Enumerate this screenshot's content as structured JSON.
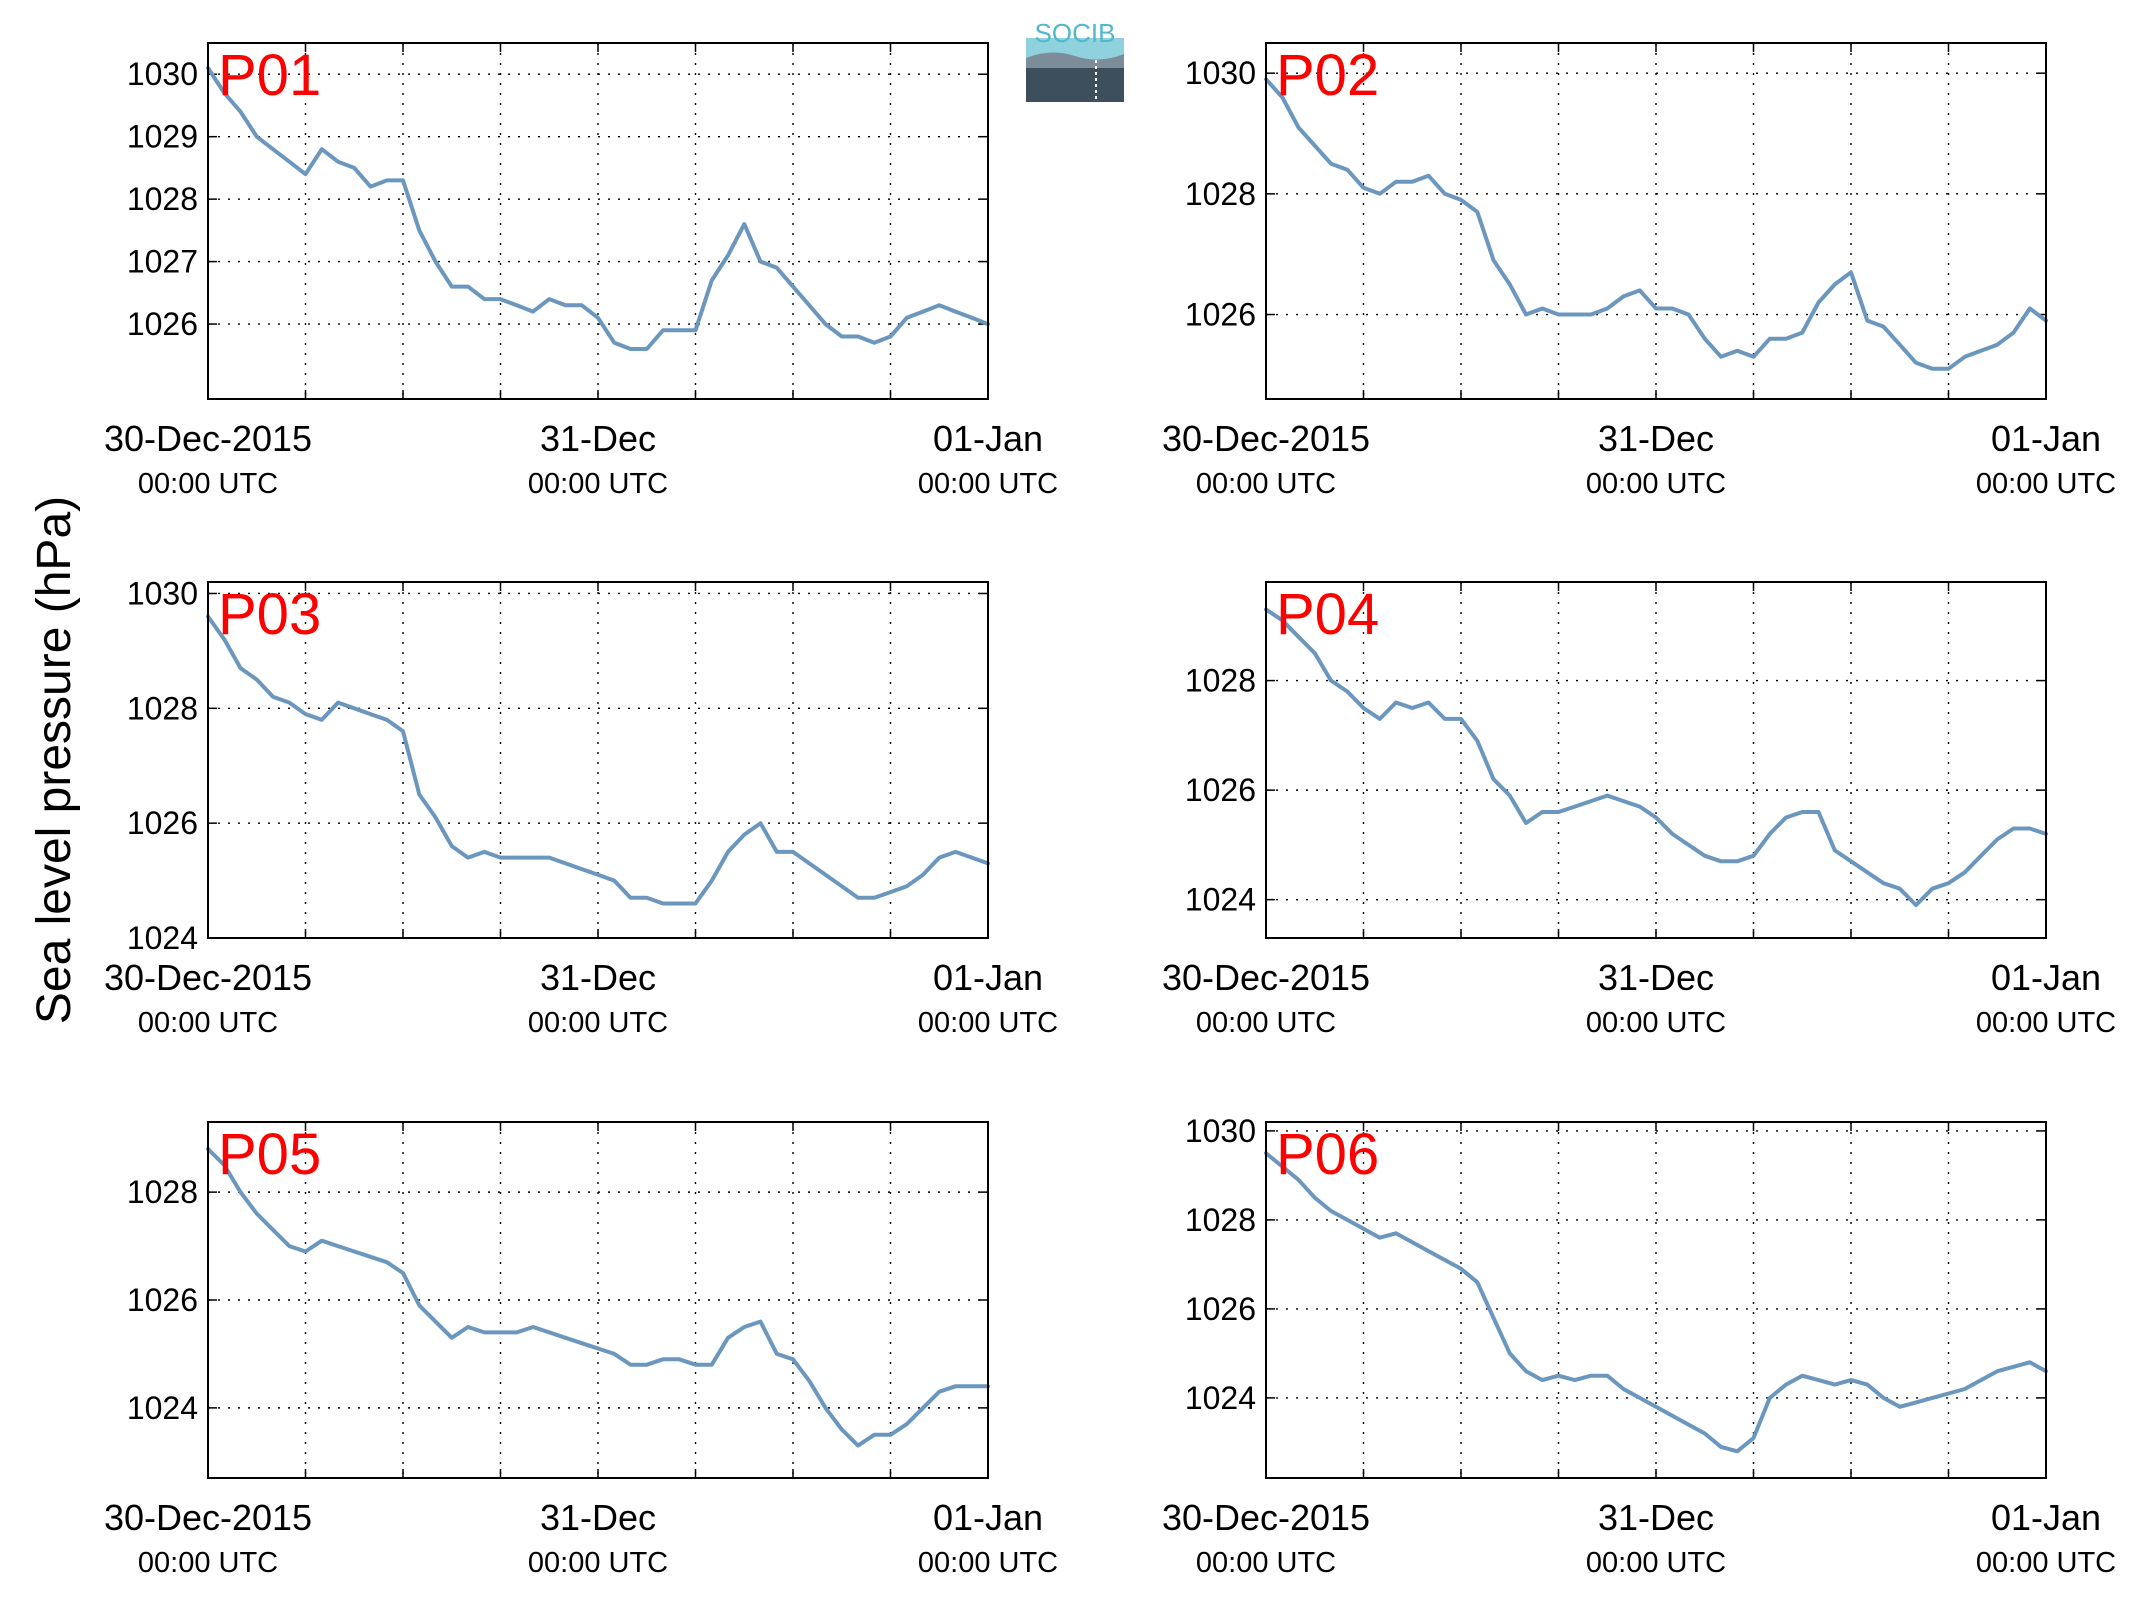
{
  "figure": {
    "ylabel": "Sea level pressure (hPa)",
    "logo_text": "SOCIB",
    "colors": {
      "line": "#6b97be",
      "panel_label": "#ff0000",
      "axis": "#000000",
      "grid": "#000000"
    }
  },
  "chart_data": [
    {
      "type": "line",
      "title": "P01",
      "x_ticks": [
        {
          "t": 0,
          "top": "30-Dec-2015",
          "bottom": "00:00 UTC"
        },
        {
          "t": 24,
          "top": "31-Dec",
          "bottom": "00:00 UTC"
        },
        {
          "t": 48,
          "top": "01-Jan",
          "bottom": "00:00 UTC"
        }
      ],
      "xlim": [
        0,
        48
      ],
      "ylim": [
        1024.8,
        1030.5
      ],
      "y_ticks": [
        1026,
        1027,
        1028,
        1029,
        1030
      ],
      "grid": true,
      "series": [
        {
          "x": [
            0,
            1,
            2,
            3,
            4,
            5,
            6,
            7,
            8,
            9,
            10,
            11,
            12,
            13,
            14,
            15,
            16,
            17,
            18,
            19,
            20,
            21,
            22,
            23,
            24,
            25,
            26,
            27,
            28,
            29,
            30,
            31,
            32,
            33,
            34,
            35,
            36,
            37,
            38,
            39,
            40,
            41,
            42,
            43,
            44,
            45,
            46,
            47,
            48
          ],
          "y": [
            1030.1,
            1029.7,
            1029.4,
            1029.0,
            1028.8,
            1028.6,
            1028.4,
            1028.8,
            1028.6,
            1028.5,
            1028.2,
            1028.3,
            1028.3,
            1027.5,
            1027.0,
            1026.6,
            1026.6,
            1026.4,
            1026.4,
            1026.3,
            1026.2,
            1026.4,
            1026.3,
            1026.3,
            1026.1,
            1025.7,
            1025.6,
            1025.6,
            1025.9,
            1025.9,
            1025.9,
            1026.7,
            1027.1,
            1027.6,
            1027.0,
            1026.9,
            1026.6,
            1026.3,
            1026.0,
            1025.8,
            1025.8,
            1025.7,
            1025.8,
            1026.1,
            1026.2,
            1026.3,
            1026.2,
            1026.1,
            1026.0
          ]
        }
      ]
    },
    {
      "type": "line",
      "title": "P02",
      "x_ticks": [
        {
          "t": 0,
          "top": "30-Dec-2015",
          "bottom": "00:00 UTC"
        },
        {
          "t": 24,
          "top": "31-Dec",
          "bottom": "00:00 UTC"
        },
        {
          "t": 48,
          "top": "01-Jan",
          "bottom": "00:00 UTC"
        }
      ],
      "xlim": [
        0,
        48
      ],
      "ylim": [
        1024.6,
        1030.5
      ],
      "y_ticks": [
        1026,
        1028,
        1030
      ],
      "grid": true,
      "series": [
        {
          "x": [
            0,
            1,
            2,
            3,
            4,
            5,
            6,
            7,
            8,
            9,
            10,
            11,
            12,
            13,
            14,
            15,
            16,
            17,
            18,
            19,
            20,
            21,
            22,
            23,
            24,
            25,
            26,
            27,
            28,
            29,
            30,
            31,
            32,
            33,
            34,
            35,
            36,
            37,
            38,
            39,
            40,
            41,
            42,
            43,
            44,
            45,
            46,
            47,
            48
          ],
          "y": [
            1029.9,
            1029.6,
            1029.1,
            1028.8,
            1028.5,
            1028.4,
            1028.1,
            1028.0,
            1028.2,
            1028.2,
            1028.3,
            1028.0,
            1027.9,
            1027.7,
            1026.9,
            1026.5,
            1026.0,
            1026.1,
            1026.0,
            1026.0,
            1026.0,
            1026.1,
            1026.3,
            1026.4,
            1026.1,
            1026.1,
            1026.0,
            1025.6,
            1025.3,
            1025.4,
            1025.3,
            1025.6,
            1025.6,
            1025.7,
            1026.2,
            1026.5,
            1026.7,
            1025.9,
            1025.8,
            1025.5,
            1025.2,
            1025.1,
            1025.1,
            1025.3,
            1025.4,
            1025.5,
            1025.7,
            1026.1,
            1025.9
          ]
        }
      ]
    },
    {
      "type": "line",
      "title": "P03",
      "x_ticks": [
        {
          "t": 0,
          "top": "30-Dec-2015",
          "bottom": "00:00 UTC"
        },
        {
          "t": 24,
          "top": "31-Dec",
          "bottom": "00:00 UTC"
        },
        {
          "t": 48,
          "top": "01-Jan",
          "bottom": "00:00 UTC"
        }
      ],
      "xlim": [
        0,
        48
      ],
      "ylim": [
        1024.0,
        1030.2
      ],
      "y_ticks": [
        1024,
        1026,
        1028,
        1030
      ],
      "grid": true,
      "series": [
        {
          "x": [
            0,
            1,
            2,
            3,
            4,
            5,
            6,
            7,
            8,
            9,
            10,
            11,
            12,
            13,
            14,
            15,
            16,
            17,
            18,
            19,
            20,
            21,
            22,
            23,
            24,
            25,
            26,
            27,
            28,
            29,
            30,
            31,
            32,
            33,
            34,
            35,
            36,
            37,
            38,
            39,
            40,
            41,
            42,
            43,
            44,
            45,
            46,
            47,
            48
          ],
          "y": [
            1029.6,
            1029.2,
            1028.7,
            1028.5,
            1028.2,
            1028.1,
            1027.9,
            1027.8,
            1028.1,
            1028.0,
            1027.9,
            1027.8,
            1027.6,
            1026.5,
            1026.1,
            1025.6,
            1025.4,
            1025.5,
            1025.4,
            1025.4,
            1025.4,
            1025.4,
            1025.3,
            1025.2,
            1025.1,
            1025.0,
            1024.7,
            1024.7,
            1024.6,
            1024.6,
            1024.6,
            1025.0,
            1025.5,
            1025.8,
            1026.0,
            1025.5,
            1025.5,
            1025.3,
            1025.1,
            1024.9,
            1024.7,
            1024.7,
            1024.8,
            1024.9,
            1025.1,
            1025.4,
            1025.5,
            1025.4,
            1025.3
          ]
        }
      ]
    },
    {
      "type": "line",
      "title": "P04",
      "x_ticks": [
        {
          "t": 0,
          "top": "30-Dec-2015",
          "bottom": "00:00 UTC"
        },
        {
          "t": 24,
          "top": "31-Dec",
          "bottom": "00:00 UTC"
        },
        {
          "t": 48,
          "top": "01-Jan",
          "bottom": "00:00 UTC"
        }
      ],
      "xlim": [
        0,
        48
      ],
      "ylim": [
        1023.3,
        1029.8
      ],
      "y_ticks": [
        1024,
        1026,
        1028
      ],
      "grid": true,
      "series": [
        {
          "x": [
            0,
            1,
            2,
            3,
            4,
            5,
            6,
            7,
            8,
            9,
            10,
            11,
            12,
            13,
            14,
            15,
            16,
            17,
            18,
            19,
            20,
            21,
            22,
            23,
            24,
            25,
            26,
            27,
            28,
            29,
            30,
            31,
            32,
            33,
            34,
            35,
            36,
            37,
            38,
            39,
            40,
            41,
            42,
            43,
            44,
            45,
            46,
            47,
            48
          ],
          "y": [
            1029.3,
            1029.1,
            1028.8,
            1028.5,
            1028.0,
            1027.8,
            1027.5,
            1027.3,
            1027.6,
            1027.5,
            1027.6,
            1027.3,
            1027.3,
            1026.9,
            1026.2,
            1025.9,
            1025.4,
            1025.6,
            1025.6,
            1025.7,
            1025.8,
            1025.9,
            1025.8,
            1025.7,
            1025.5,
            1025.2,
            1025.0,
            1024.8,
            1024.7,
            1024.7,
            1024.8,
            1025.2,
            1025.5,
            1025.6,
            1025.6,
            1024.9,
            1024.7,
            1024.5,
            1024.3,
            1024.2,
            1023.9,
            1024.2,
            1024.3,
            1024.5,
            1024.8,
            1025.1,
            1025.3,
            1025.3,
            1025.2
          ]
        }
      ]
    },
    {
      "type": "line",
      "title": "P05",
      "x_ticks": [
        {
          "t": 0,
          "top": "30-Dec-2015",
          "bottom": "00:00 UTC"
        },
        {
          "t": 24,
          "top": "31-Dec",
          "bottom": "00:00 UTC"
        },
        {
          "t": 48,
          "top": "01-Jan",
          "bottom": "00:00 UTC"
        }
      ],
      "xlim": [
        0,
        48
      ],
      "ylim": [
        1022.7,
        1029.3
      ],
      "y_ticks": [
        1024,
        1026,
        1028
      ],
      "grid": true,
      "series": [
        {
          "x": [
            0,
            1,
            2,
            3,
            4,
            5,
            6,
            7,
            8,
            9,
            10,
            11,
            12,
            13,
            14,
            15,
            16,
            17,
            18,
            19,
            20,
            21,
            22,
            23,
            24,
            25,
            26,
            27,
            28,
            29,
            30,
            31,
            32,
            33,
            34,
            35,
            36,
            37,
            38,
            39,
            40,
            41,
            42,
            43,
            44,
            45,
            46,
            47,
            48
          ],
          "y": [
            1028.8,
            1028.5,
            1028.0,
            1027.6,
            1027.3,
            1027.0,
            1026.9,
            1027.1,
            1027.0,
            1026.9,
            1026.8,
            1026.7,
            1026.5,
            1025.9,
            1025.6,
            1025.3,
            1025.5,
            1025.4,
            1025.4,
            1025.4,
            1025.5,
            1025.4,
            1025.3,
            1025.2,
            1025.1,
            1025.0,
            1024.8,
            1024.8,
            1024.9,
            1024.9,
            1024.8,
            1024.8,
            1025.3,
            1025.5,
            1025.6,
            1025.0,
            1024.9,
            1024.5,
            1024.0,
            1023.6,
            1023.3,
            1023.5,
            1023.5,
            1023.7,
            1024.0,
            1024.3,
            1024.4,
            1024.4,
            1024.4
          ]
        }
      ]
    },
    {
      "type": "line",
      "title": "P06",
      "x_ticks": [
        {
          "t": 0,
          "top": "30-Dec-2015",
          "bottom": "00:00 UTC"
        },
        {
          "t": 24,
          "top": "31-Dec",
          "bottom": "00:00 UTC"
        },
        {
          "t": 48,
          "top": "01-Jan",
          "bottom": "00:00 UTC"
        }
      ],
      "xlim": [
        0,
        48
      ],
      "ylim": [
        1022.2,
        1030.2
      ],
      "y_ticks": [
        1024,
        1026,
        1028,
        1030
      ],
      "grid": true,
      "series": [
        {
          "x": [
            0,
            1,
            2,
            3,
            4,
            5,
            6,
            7,
            8,
            9,
            10,
            11,
            12,
            13,
            14,
            15,
            16,
            17,
            18,
            19,
            20,
            21,
            22,
            23,
            24,
            25,
            26,
            27,
            28,
            29,
            30,
            31,
            32,
            33,
            34,
            35,
            36,
            37,
            38,
            39,
            40,
            41,
            42,
            43,
            44,
            45,
            46,
            47,
            48
          ],
          "y": [
            1029.5,
            1029.2,
            1028.9,
            1028.5,
            1028.2,
            1028.0,
            1027.8,
            1027.6,
            1027.7,
            1027.5,
            1027.3,
            1027.1,
            1026.9,
            1026.6,
            1025.8,
            1025.0,
            1024.6,
            1024.4,
            1024.5,
            1024.4,
            1024.5,
            1024.5,
            1024.2,
            1024.0,
            1023.8,
            1023.6,
            1023.4,
            1023.2,
            1022.9,
            1022.8,
            1023.1,
            1024.0,
            1024.3,
            1024.5,
            1024.4,
            1024.3,
            1024.4,
            1024.3,
            1024.0,
            1023.8,
            1023.9,
            1024.0,
            1024.1,
            1024.2,
            1024.4,
            1024.6,
            1024.7,
            1024.8,
            1024.6
          ]
        }
      ]
    }
  ]
}
